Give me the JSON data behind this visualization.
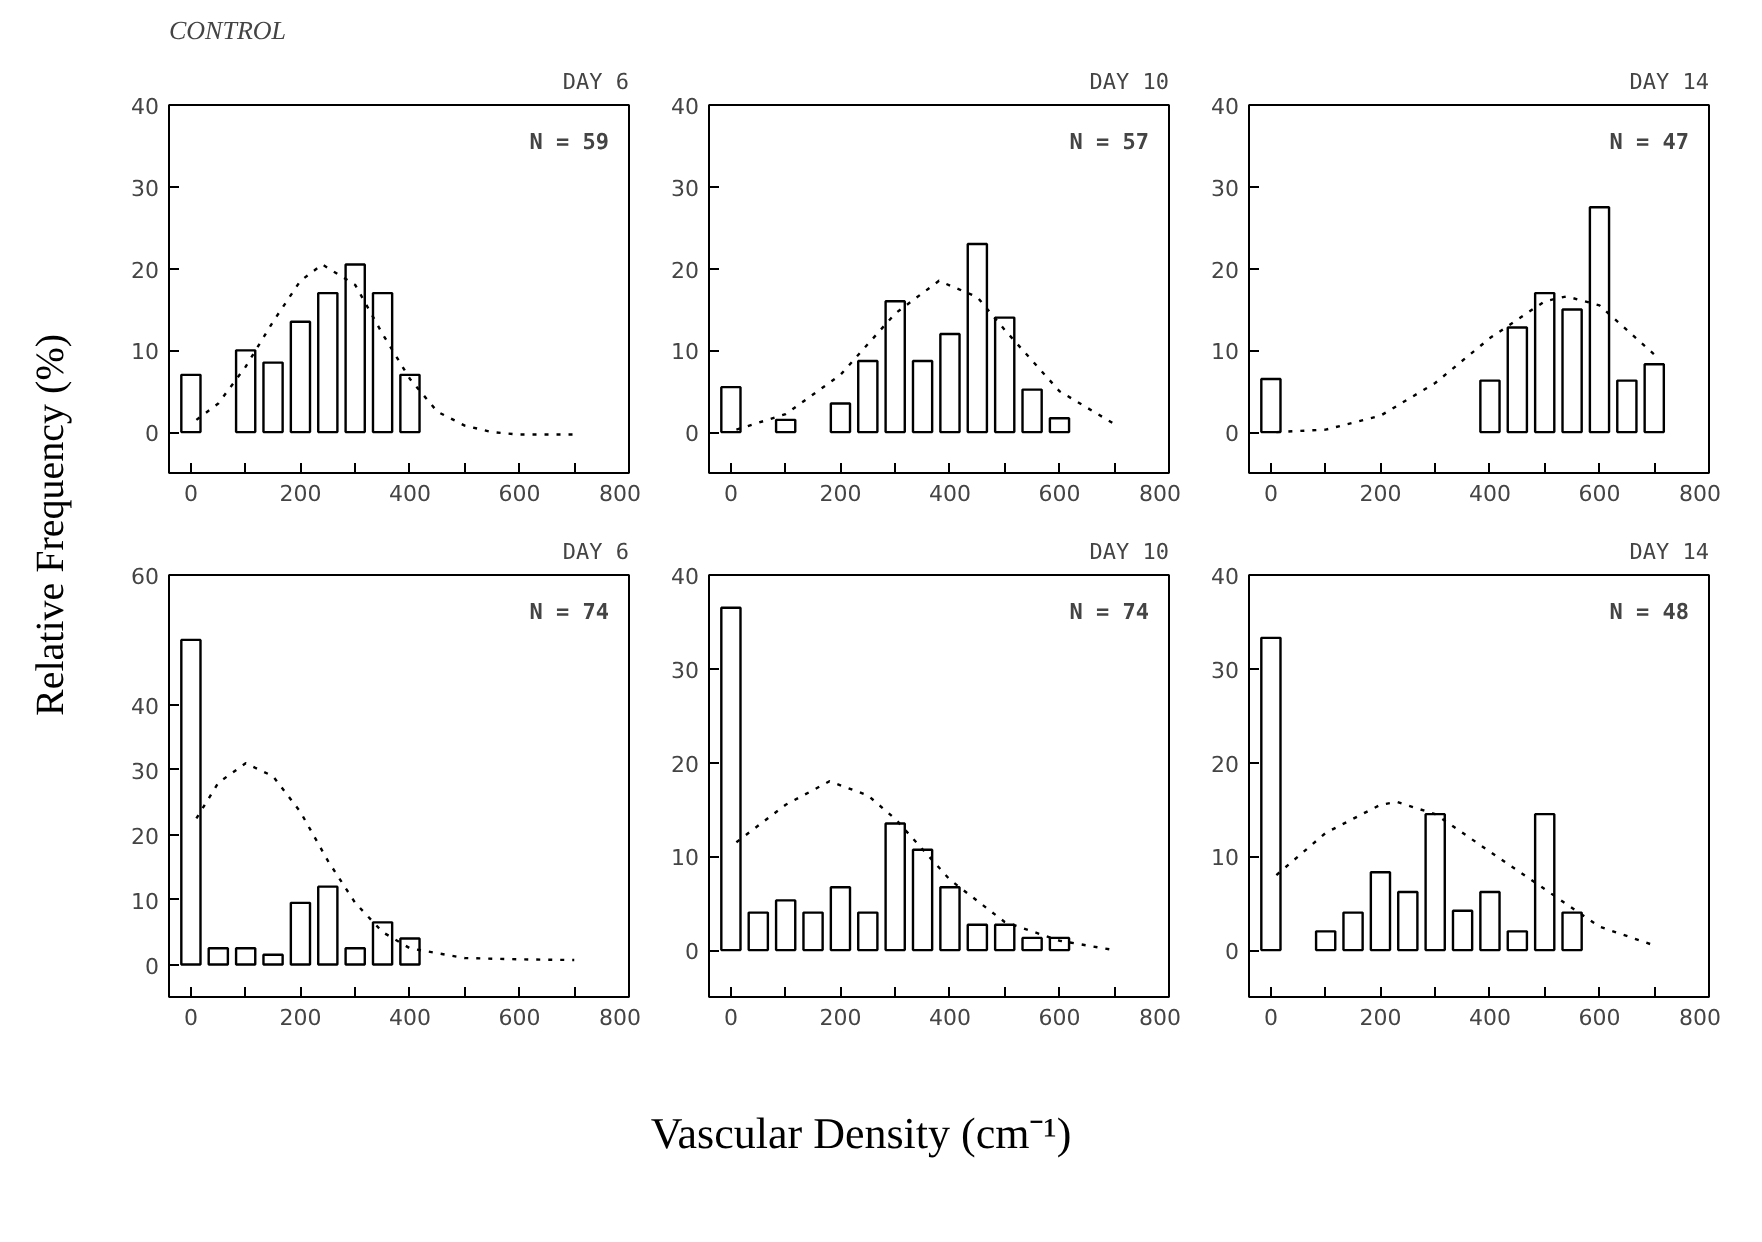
{
  "chart_data": [
    {
      "type": "bar",
      "title": "CONTROL",
      "subtitle": "DAY 6",
      "annotations": [
        "N = 59"
      ],
      "ylabel": "Relative Frequency (%)",
      "xlim": [
        -40,
        800
      ],
      "xticks": [
        0,
        {
          "value": 100,
          "label": null
        },
        200,
        {
          "value": 300,
          "label": null
        },
        400,
        {
          "value": 500,
          "label": null
        },
        600,
        {
          "value": 700,
          "label": null
        },
        800
      ],
      "ylim": [
        -5,
        40
      ],
      "yticks": [
        0,
        10,
        20,
        30,
        40
      ],
      "grid": false,
      "series": [
        {
          "color": "#000000",
          "x": [
            0,
            100,
            150,
            200,
            250,
            300,
            350,
            400
          ],
          "values": [
            7,
            10,
            8.5,
            13.5,
            17,
            20.5,
            17,
            7
          ]
        },
        {
          "type": "line",
          "color": "#000000",
          "line_style": "dotted",
          "x": [
            10,
            50,
            100,
            150,
            200,
            240,
            300,
            350,
            400,
            450,
            500,
            550,
            600,
            700
          ],
          "values": [
            1.5,
            3.5,
            8,
            13.5,
            18.5,
            20.5,
            18,
            12,
            6.5,
            2.5,
            0.8,
            0,
            -0.3,
            -0.3
          ]
        }
      ]
    },
    {
      "type": "bar",
      "subtitle": "DAY 10",
      "annotations": [
        "N = 57"
      ],
      "xlim": [
        -40,
        800
      ],
      "xticks": [
        0,
        {
          "value": 100,
          "label": null
        },
        200,
        {
          "value": 300,
          "label": null
        },
        400,
        {
          "value": 500,
          "label": null
        },
        600,
        {
          "value": 700,
          "label": null
        },
        800
      ],
      "ylim": [
        -5,
        40
      ],
      "yticks": [
        0,
        10,
        20,
        30,
        40
      ],
      "grid": false,
      "series": [
        {
          "color": "#000000",
          "x": [
            0,
            100,
            200,
            250,
            300,
            350,
            400,
            450,
            500,
            550,
            600
          ],
          "values": [
            5.5,
            1.5,
            3.5,
            8.7,
            16,
            8.7,
            12,
            23,
            14,
            5.2,
            1.7
          ]
        },
        {
          "type": "line",
          "color": "#000000",
          "line_style": "dotted",
          "x": [
            10,
            100,
            200,
            300,
            380,
            450,
            500,
            600,
            700
          ],
          "values": [
            0.3,
            2.2,
            7,
            14.5,
            18.5,
            16.5,
            12.5,
            5,
            1
          ]
        }
      ]
    },
    {
      "type": "bar",
      "subtitle": "DAY 14",
      "annotations": [
        "N = 47"
      ],
      "xlim": [
        -40,
        800
      ],
      "xticks": [
        0,
        {
          "value": 100,
          "label": null
        },
        200,
        {
          "value": 300,
          "label": null
        },
        400,
        {
          "value": 500,
          "label": null
        },
        600,
        {
          "value": 700,
          "label": null
        },
        800
      ],
      "ylim": [
        -5,
        40
      ],
      "yticks": [
        0,
        10,
        20,
        30,
        40
      ],
      "grid": false,
      "series": [
        {
          "color": "#000000",
          "x": [
            0,
            400,
            450,
            500,
            550,
            600,
            650,
            700
          ],
          "values": [
            6.5,
            6.3,
            12.8,
            17,
            15,
            27.5,
            6.3,
            8.3
          ]
        },
        {
          "type": "line",
          "color": "#000000",
          "line_style": "dotted",
          "x": [
            10,
            100,
            200,
            300,
            400,
            500,
            540,
            600,
            700
          ],
          "values": [
            0,
            0.3,
            2,
            6,
            11.5,
            16,
            16.6,
            15.5,
            9.5
          ]
        }
      ]
    },
    {
      "type": "bar",
      "subtitle": "DAY 6",
      "annotations": [
        "N = 74"
      ],
      "xlim": [
        -40,
        800
      ],
      "xticks": [
        0,
        {
          "value": 100,
          "label": null
        },
        200,
        {
          "value": 300,
          "label": null
        },
        400,
        {
          "value": 500,
          "label": null
        },
        600,
        {
          "value": 700,
          "label": null
        },
        800
      ],
      "ylim": [
        -5,
        60
      ],
      "yticks": [
        0,
        10,
        20,
        30,
        40,
        60
      ],
      "grid": false,
      "series": [
        {
          "color": "#000000",
          "x": [
            0,
            50,
            100,
            150,
            200,
            250,
            300,
            350,
            400
          ],
          "values": [
            50,
            2.5,
            2.5,
            1.5,
            9.5,
            12,
            2.5,
            6.5,
            4
          ]
        },
        {
          "type": "line",
          "color": "#000000",
          "line_style": "dotted",
          "x": [
            10,
            50,
            100,
            150,
            200,
            250,
            300,
            350,
            400,
            500,
            600,
            700
          ],
          "values": [
            22.5,
            28,
            31,
            29,
            23.5,
            16,
            9.5,
            5,
            2.5,
            1,
            0.8,
            0.7
          ]
        }
      ]
    },
    {
      "type": "bar",
      "subtitle": "DAY 10",
      "annotations": [
        "N = 74"
      ],
      "xlabel": "Vascular Density (cm⁻¹)",
      "xlim": [
        -40,
        800
      ],
      "xticks": [
        0,
        {
          "value": 100,
          "label": null
        },
        200,
        {
          "value": 300,
          "label": null
        },
        400,
        {
          "value": 500,
          "label": null
        },
        600,
        {
          "value": 700,
          "label": null
        },
        800
      ],
      "ylim": [
        -5,
        40
      ],
      "yticks": [
        0,
        10,
        20,
        30,
        40
      ],
      "grid": false,
      "series": [
        {
          "color": "#000000",
          "x": [
            0,
            50,
            100,
            150,
            200,
            250,
            300,
            350,
            400,
            450,
            500,
            550,
            600
          ],
          "values": [
            36.5,
            4,
            5.3,
            4,
            6.7,
            4,
            13.5,
            10.7,
            6.7,
            2.7,
            2.7,
            1.3,
            1.3
          ]
        },
        {
          "type": "line",
          "color": "#000000",
          "line_style": "dotted",
          "x": [
            10,
            100,
            180,
            250,
            300,
            400,
            500,
            600,
            700
          ],
          "values": [
            11.5,
            15.5,
            18,
            16.5,
            14,
            7.5,
            3,
            1,
            0
          ]
        }
      ]
    },
    {
      "type": "bar",
      "subtitle": "DAY 14",
      "annotations": [
        "N = 48"
      ],
      "xlim": [
        -40,
        800
      ],
      "xticks": [
        0,
        {
          "value": 100,
          "label": null
        },
        200,
        {
          "value": 300,
          "label": null
        },
        400,
        {
          "value": 500,
          "label": null
        },
        600,
        {
          "value": 700,
          "label": null
        },
        800
      ],
      "ylim": [
        -5,
        40
      ],
      "yticks": [
        0,
        10,
        20,
        30,
        40
      ],
      "grid": false,
      "series": [
        {
          "color": "#000000",
          "x": [
            0,
            100,
            150,
            200,
            250,
            300,
            350,
            400,
            450,
            500,
            550
          ],
          "values": [
            33.3,
            2,
            4,
            8.3,
            6.2,
            14.5,
            4.2,
            6.2,
            2,
            14.5,
            4
          ]
        },
        {
          "type": "line",
          "color": "#000000",
          "line_style": "dotted",
          "x": [
            10,
            100,
            200,
            230,
            300,
            400,
            500,
            600,
            700
          ],
          "values": [
            8,
            12.5,
            15.5,
            15.8,
            14.5,
            10.5,
            6.5,
            2.5,
            0.5
          ]
        }
      ]
    }
  ]
}
